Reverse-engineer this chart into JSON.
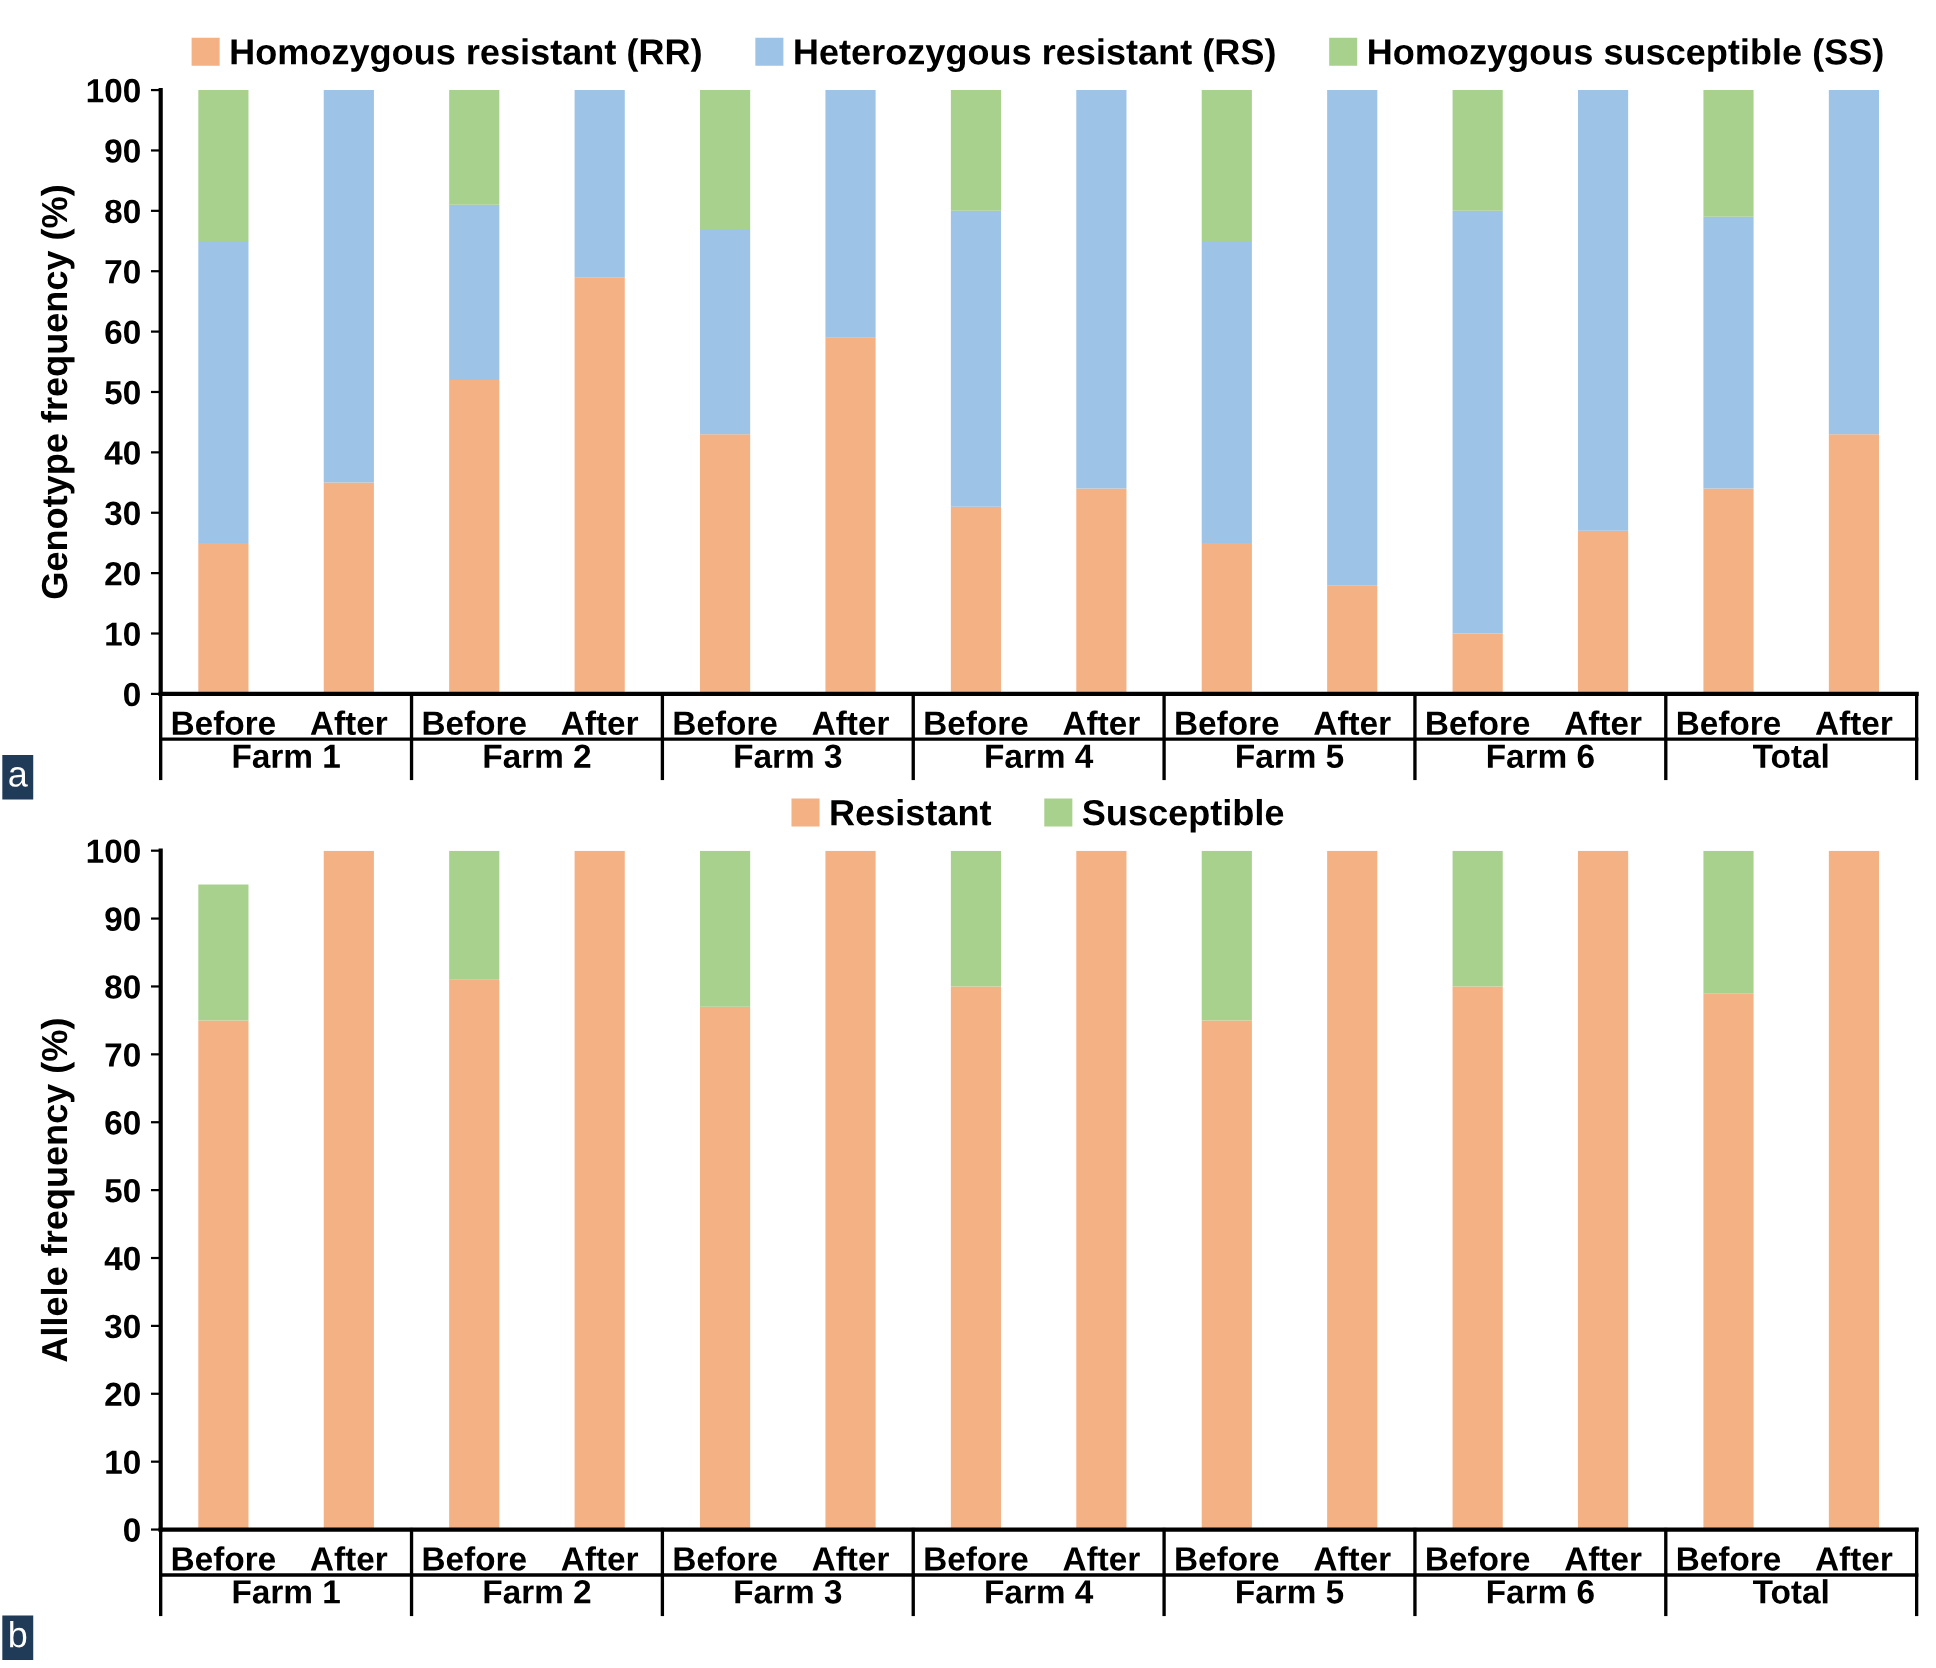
{
  "chart_data": [
    {
      "type": "bar",
      "stacked": true,
      "ylabel": "Genotype frequency (%)",
      "categories": [
        "Before",
        "After",
        "Before",
        "After",
        "Before",
        "After",
        "Before",
        "After",
        "Before",
        "After",
        "Before",
        "After",
        "Before",
        "After"
      ],
      "series": [
        {
          "name": "Homozygous resistant (RR)",
          "color": "#f4b183",
          "values": [
            25,
            35,
            52,
            69,
            43,
            59,
            31,
            34,
            25,
            18,
            10,
            27,
            34,
            43
          ]
        },
        {
          "name": "Heterozygous resistant (RS)",
          "color": "#9dc3e6",
          "values": [
            50,
            65,
            29,
            31,
            34,
            41,
            49,
            66,
            50,
            82,
            70,
            73,
            45,
            57
          ]
        },
        {
          "name": "Homozygous susceptible (SS)",
          "color": "#a9d18e",
          "values": [
            25,
            0,
            19,
            0,
            23,
            0,
            20,
            0,
            25,
            0,
            20,
            0,
            21,
            0
          ]
        }
      ],
      "ylim": [
        0,
        100
      ],
      "yticks": [
        0,
        10,
        20,
        30,
        40,
        50,
        60,
        70,
        80,
        90,
        100
      ],
      "grid": false,
      "legend": "top",
      "annotations": [
        "Farm 1",
        "Farm 2",
        "Farm 3",
        "Farm 4",
        "Farm 5",
        "Farm 6",
        "Total",
        "a"
      ]
    },
    {
      "type": "bar",
      "stacked": true,
      "ylabel": "Allele frequency (%)",
      "categories": [
        "Before",
        "After",
        "Before",
        "After",
        "Before",
        "After",
        "Before",
        "After",
        "Before",
        "After",
        "Before",
        "After",
        "Before",
        "After"
      ],
      "series": [
        {
          "name": "Resistant",
          "color": "#f4b183",
          "values": [
            75,
            100,
            81,
            100,
            77,
            100,
            80,
            100,
            75,
            100,
            80,
            100,
            79,
            100
          ]
        },
        {
          "name": "Susceptible",
          "color": "#a9d18e",
          "values": [
            20,
            0,
            19,
            0,
            23,
            0,
            20,
            0,
            25,
            0,
            20,
            0,
            21,
            0
          ]
        }
      ],
      "ylim": [
        0,
        100
      ],
      "yticks": [
        0,
        10,
        20,
        30,
        40,
        50,
        60,
        70,
        80,
        90,
        100
      ],
      "grid": false,
      "legend": "top",
      "annotations": [
        "Farm 1",
        "Farm 2",
        "Farm 3",
        "Farm 4",
        "Farm 5",
        "Farm 6",
        "Total",
        "b"
      ]
    }
  ]
}
